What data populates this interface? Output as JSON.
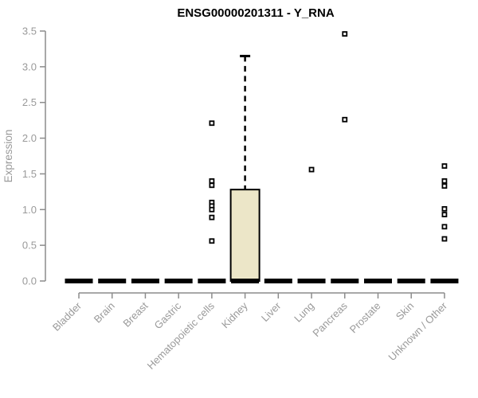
{
  "chart_data": {
    "type": "boxplot",
    "title": "ENSG00000201311 - Y_RNA",
    "ylabel": "Expression",
    "xlabel": "",
    "ylim": [
      0,
      3.5
    ],
    "yticks": [
      0,
      0.5,
      1,
      1.5,
      2,
      2.5,
      3,
      3.5
    ],
    "grid": false,
    "legend": "none",
    "categories": [
      "Bladder",
      "Brain",
      "Breast",
      "Gastric",
      "Hematopoietic cells",
      "Kidney",
      "Liver",
      "Lung",
      "Pancreas",
      "Prostate",
      "Skin",
      "Unknown / Other"
    ],
    "boxes": [
      {
        "label": "Bladder",
        "whisker_low": 0,
        "q1": 0,
        "median": 0,
        "q3": 0,
        "whisker_high": 0,
        "outliers": []
      },
      {
        "label": "Brain",
        "whisker_low": 0,
        "q1": 0,
        "median": 0,
        "q3": 0,
        "whisker_high": 0,
        "outliers": []
      },
      {
        "label": "Breast",
        "whisker_low": 0,
        "q1": 0,
        "median": 0,
        "q3": 0,
        "whisker_high": 0,
        "outliers": []
      },
      {
        "label": "Gastric",
        "whisker_low": 0,
        "q1": 0,
        "median": 0,
        "q3": 0,
        "whisker_high": 0,
        "outliers": []
      },
      {
        "label": "Hematopoietic cells",
        "whisker_low": 0,
        "q1": 0,
        "median": 0,
        "q3": 0,
        "whisker_high": 0,
        "outliers": [
          2.21,
          1.4,
          1.34,
          1.1,
          1.05,
          1.0,
          0.89,
          0.56
        ]
      },
      {
        "label": "Kidney",
        "whisker_low": 0,
        "q1": 0,
        "median": 0,
        "q3": 1.28,
        "whisker_high": 3.15,
        "outliers": []
      },
      {
        "label": "Liver",
        "whisker_low": 0,
        "q1": 0,
        "median": 0,
        "q3": 0,
        "whisker_high": 0,
        "outliers": []
      },
      {
        "label": "Lung",
        "whisker_low": 0,
        "q1": 0,
        "median": 0,
        "q3": 0,
        "whisker_high": 0,
        "outliers": [
          1.56
        ]
      },
      {
        "label": "Pancreas",
        "whisker_low": 0,
        "q1": 0,
        "median": 0,
        "q3": 0,
        "whisker_high": 0,
        "outliers": [
          3.46,
          2.26
        ]
      },
      {
        "label": "Prostate",
        "whisker_low": 0,
        "q1": 0,
        "median": 0,
        "q3": 0,
        "whisker_high": 0,
        "outliers": []
      },
      {
        "label": "Skin",
        "whisker_low": 0,
        "q1": 0,
        "median": 0,
        "q3": 0,
        "whisker_high": 0,
        "outliers": []
      },
      {
        "label": "Unknown / Other",
        "whisker_low": 0,
        "q1": 0,
        "median": 0,
        "q3": 0,
        "whisker_high": 0,
        "outliers": [
          1.61,
          1.4,
          1.33,
          1.01,
          0.93,
          0.76,
          0.59
        ]
      }
    ],
    "colors": {
      "box_fill": "#ece6c8",
      "box_stroke": "#000000",
      "median": "#000000",
      "whisker": "#000000",
      "outlier_fill": "#ffffff",
      "outlier_stroke": "#000000",
      "axis": "#8c8c8c",
      "tick_text": "#9a9a9a",
      "title": "#000000"
    }
  }
}
